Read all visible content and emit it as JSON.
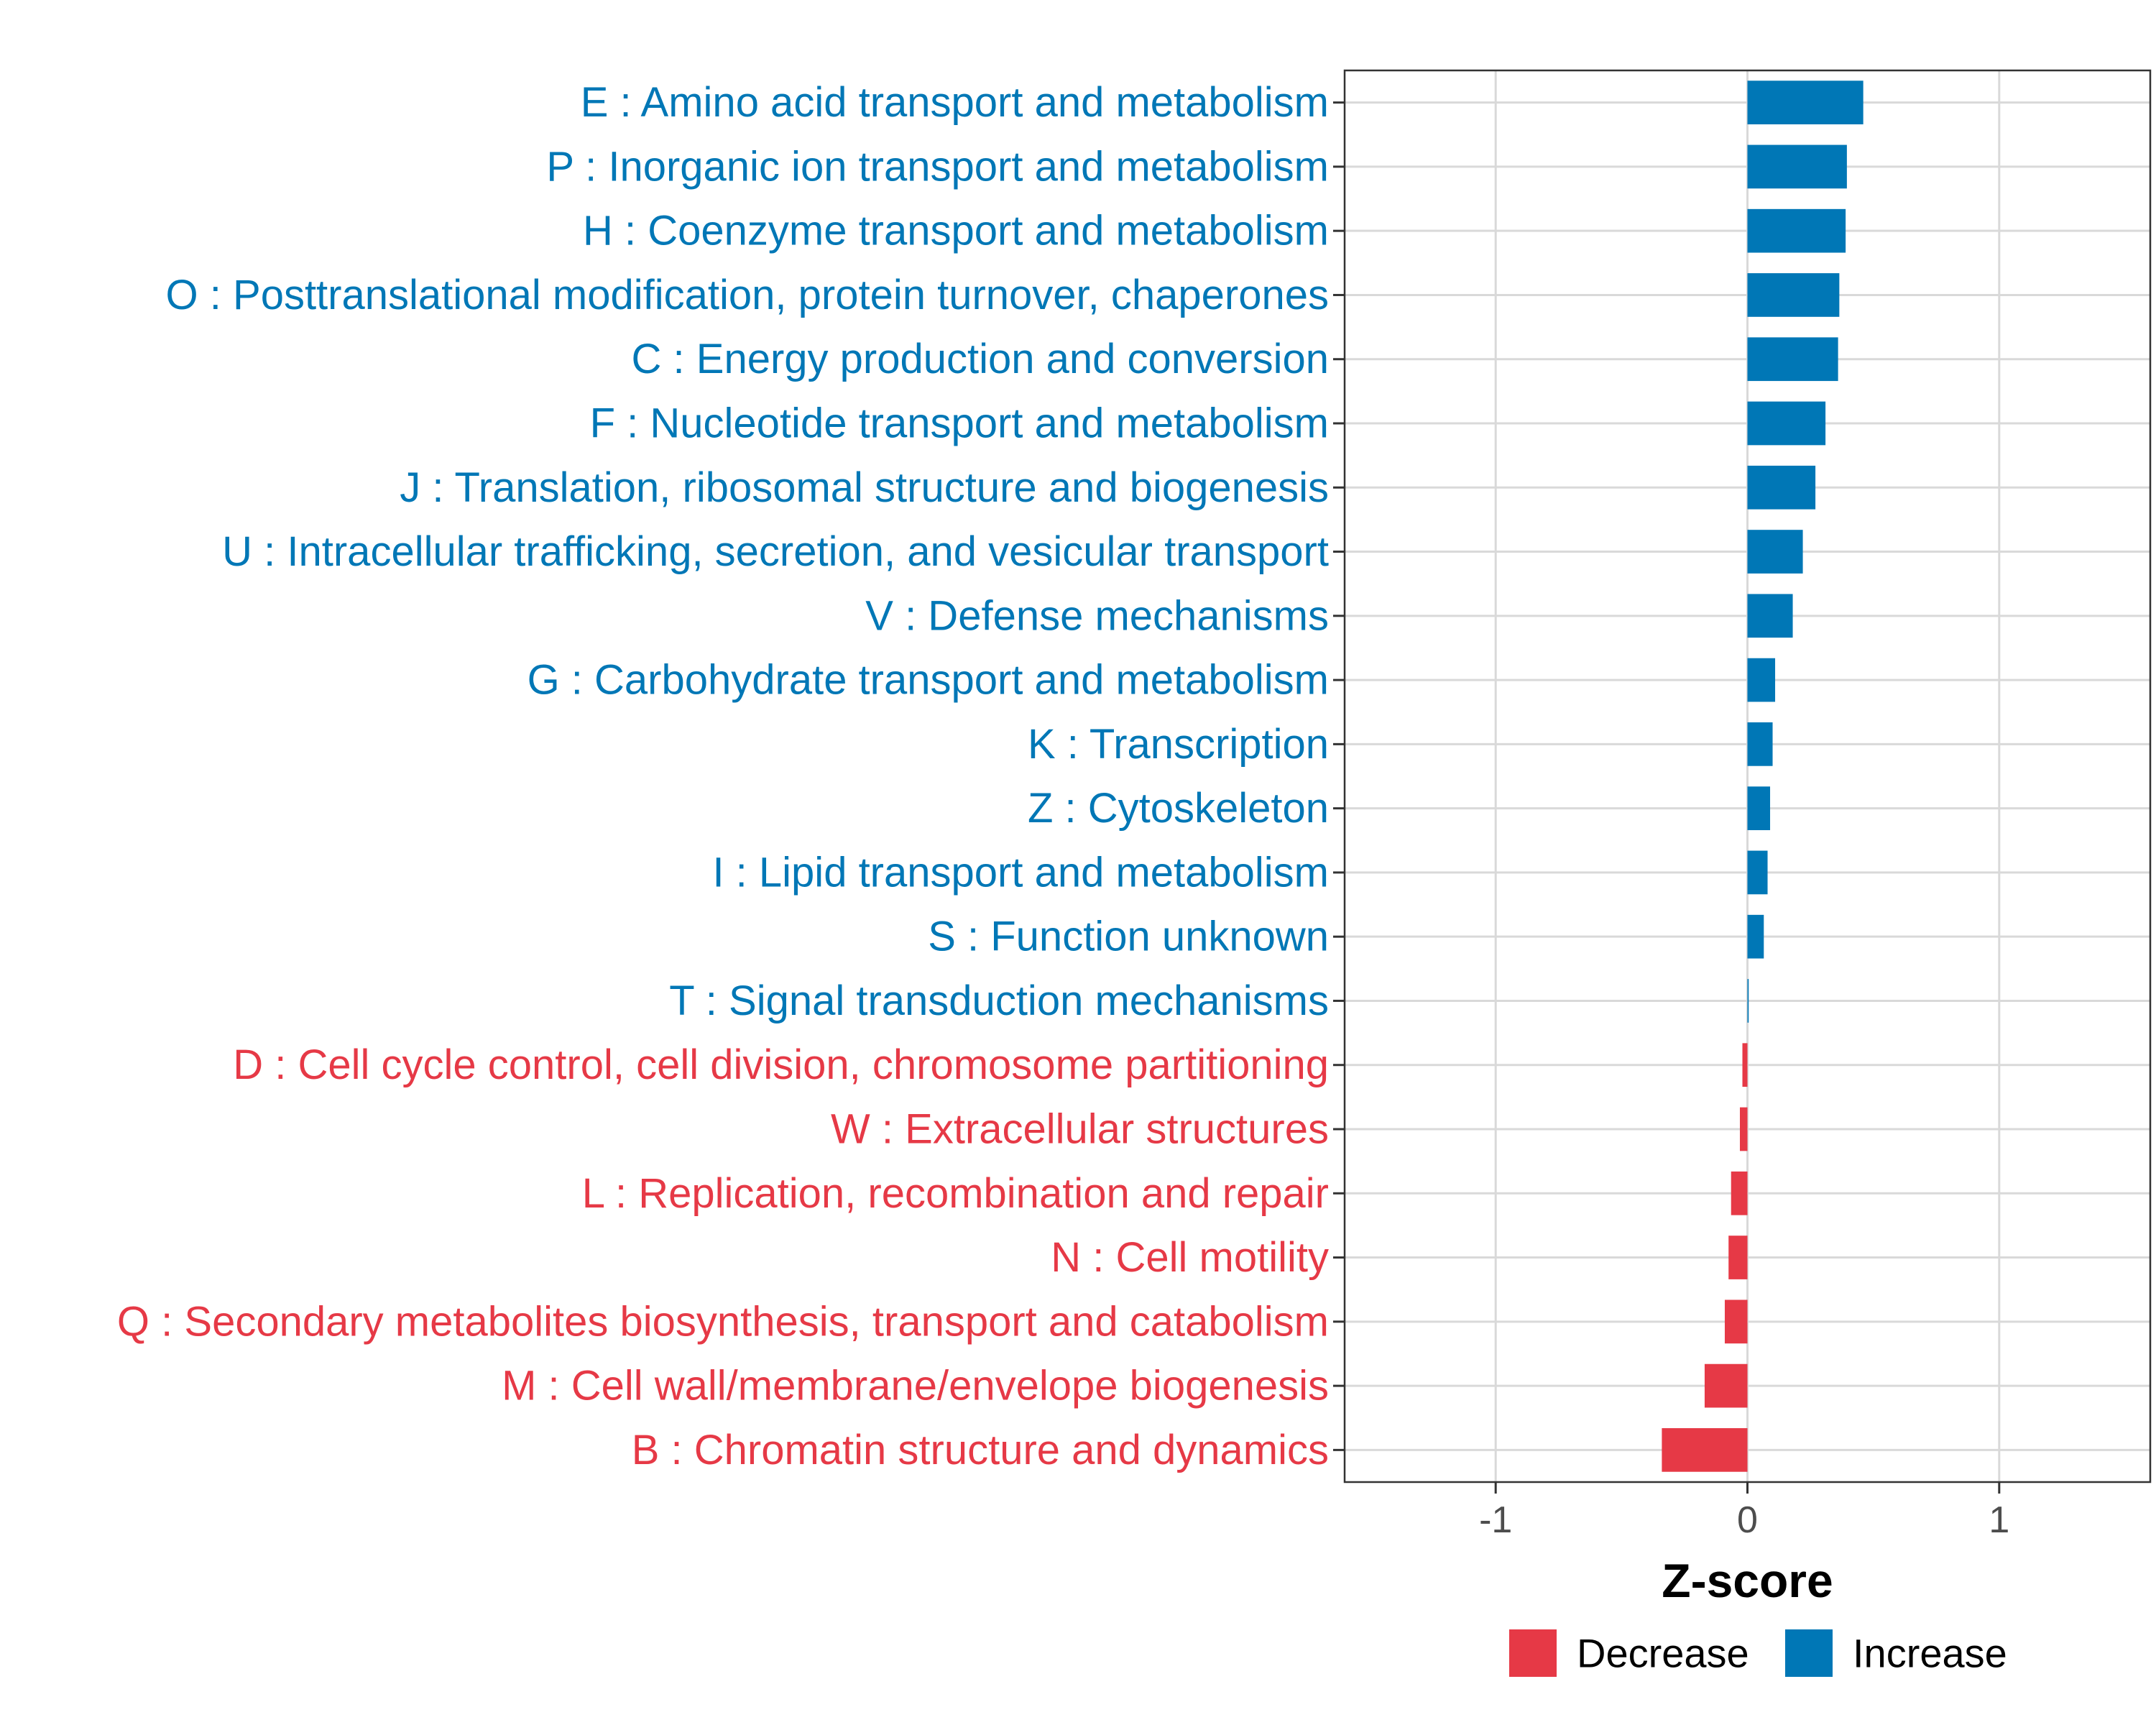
{
  "chart_data": {
    "type": "bar",
    "orientation": "horizontal",
    "title": "",
    "xlabel": "Z-score",
    "ylabel": "",
    "xlim": [
      -1.6,
      1.6
    ],
    "xticks": [
      -1,
      0,
      1
    ],
    "xtick_labels": [
      "-1",
      "0",
      "1"
    ],
    "grid": true,
    "legend_position": "bottom",
    "colors": {
      "Decrease": "#e63946",
      "Increase": "#0077b6"
    },
    "legend": [
      {
        "name": "Decrease",
        "color": "#e63946"
      },
      {
        "name": "Increase",
        "color": "#0077b6"
      }
    ],
    "categories": [
      "E : Amino acid transport and metabolism",
      "P : Inorganic ion transport and metabolism",
      "H : Coenzyme transport and metabolism",
      "O : Posttranslational modification, protein turnover, chaperones",
      "C : Energy production and conversion",
      "F : Nucleotide transport and metabolism",
      "J : Translation, ribosomal structure and biogenesis",
      "U : Intracellular trafficking, secretion, and vesicular transport",
      "V : Defense mechanisms",
      "G : Carbohydrate transport and metabolism",
      "K : Transcription",
      "Z : Cytoskeleton",
      "I : Lipid transport and metabolism",
      "S : Function unknown",
      "T : Signal transduction mechanisms",
      "D : Cell cycle control, cell division, chromosome partitioning",
      "W : Extracellular structures",
      "L : Replication, recombination and repair",
      "N : Cell motility",
      "Q : Secondary metabolites biosynthesis, transport and catabolism",
      "M : Cell wall/membrane/envelope biogenesis",
      "B : Chromatin structure and dynamics"
    ],
    "values": [
      0.46,
      0.395,
      0.39,
      0.365,
      0.36,
      0.31,
      0.27,
      0.22,
      0.18,
      0.11,
      0.1,
      0.09,
      0.08,
      0.065,
      0.005,
      -0.02,
      -0.03,
      -0.065,
      -0.075,
      -0.09,
      -0.17,
      -0.34
    ],
    "groups": [
      "Increase",
      "Increase",
      "Increase",
      "Increase",
      "Increase",
      "Increase",
      "Increase",
      "Increase",
      "Increase",
      "Increase",
      "Increase",
      "Increase",
      "Increase",
      "Increase",
      "Increase",
      "Decrease",
      "Decrease",
      "Decrease",
      "Decrease",
      "Decrease",
      "Decrease",
      "Decrease"
    ]
  }
}
